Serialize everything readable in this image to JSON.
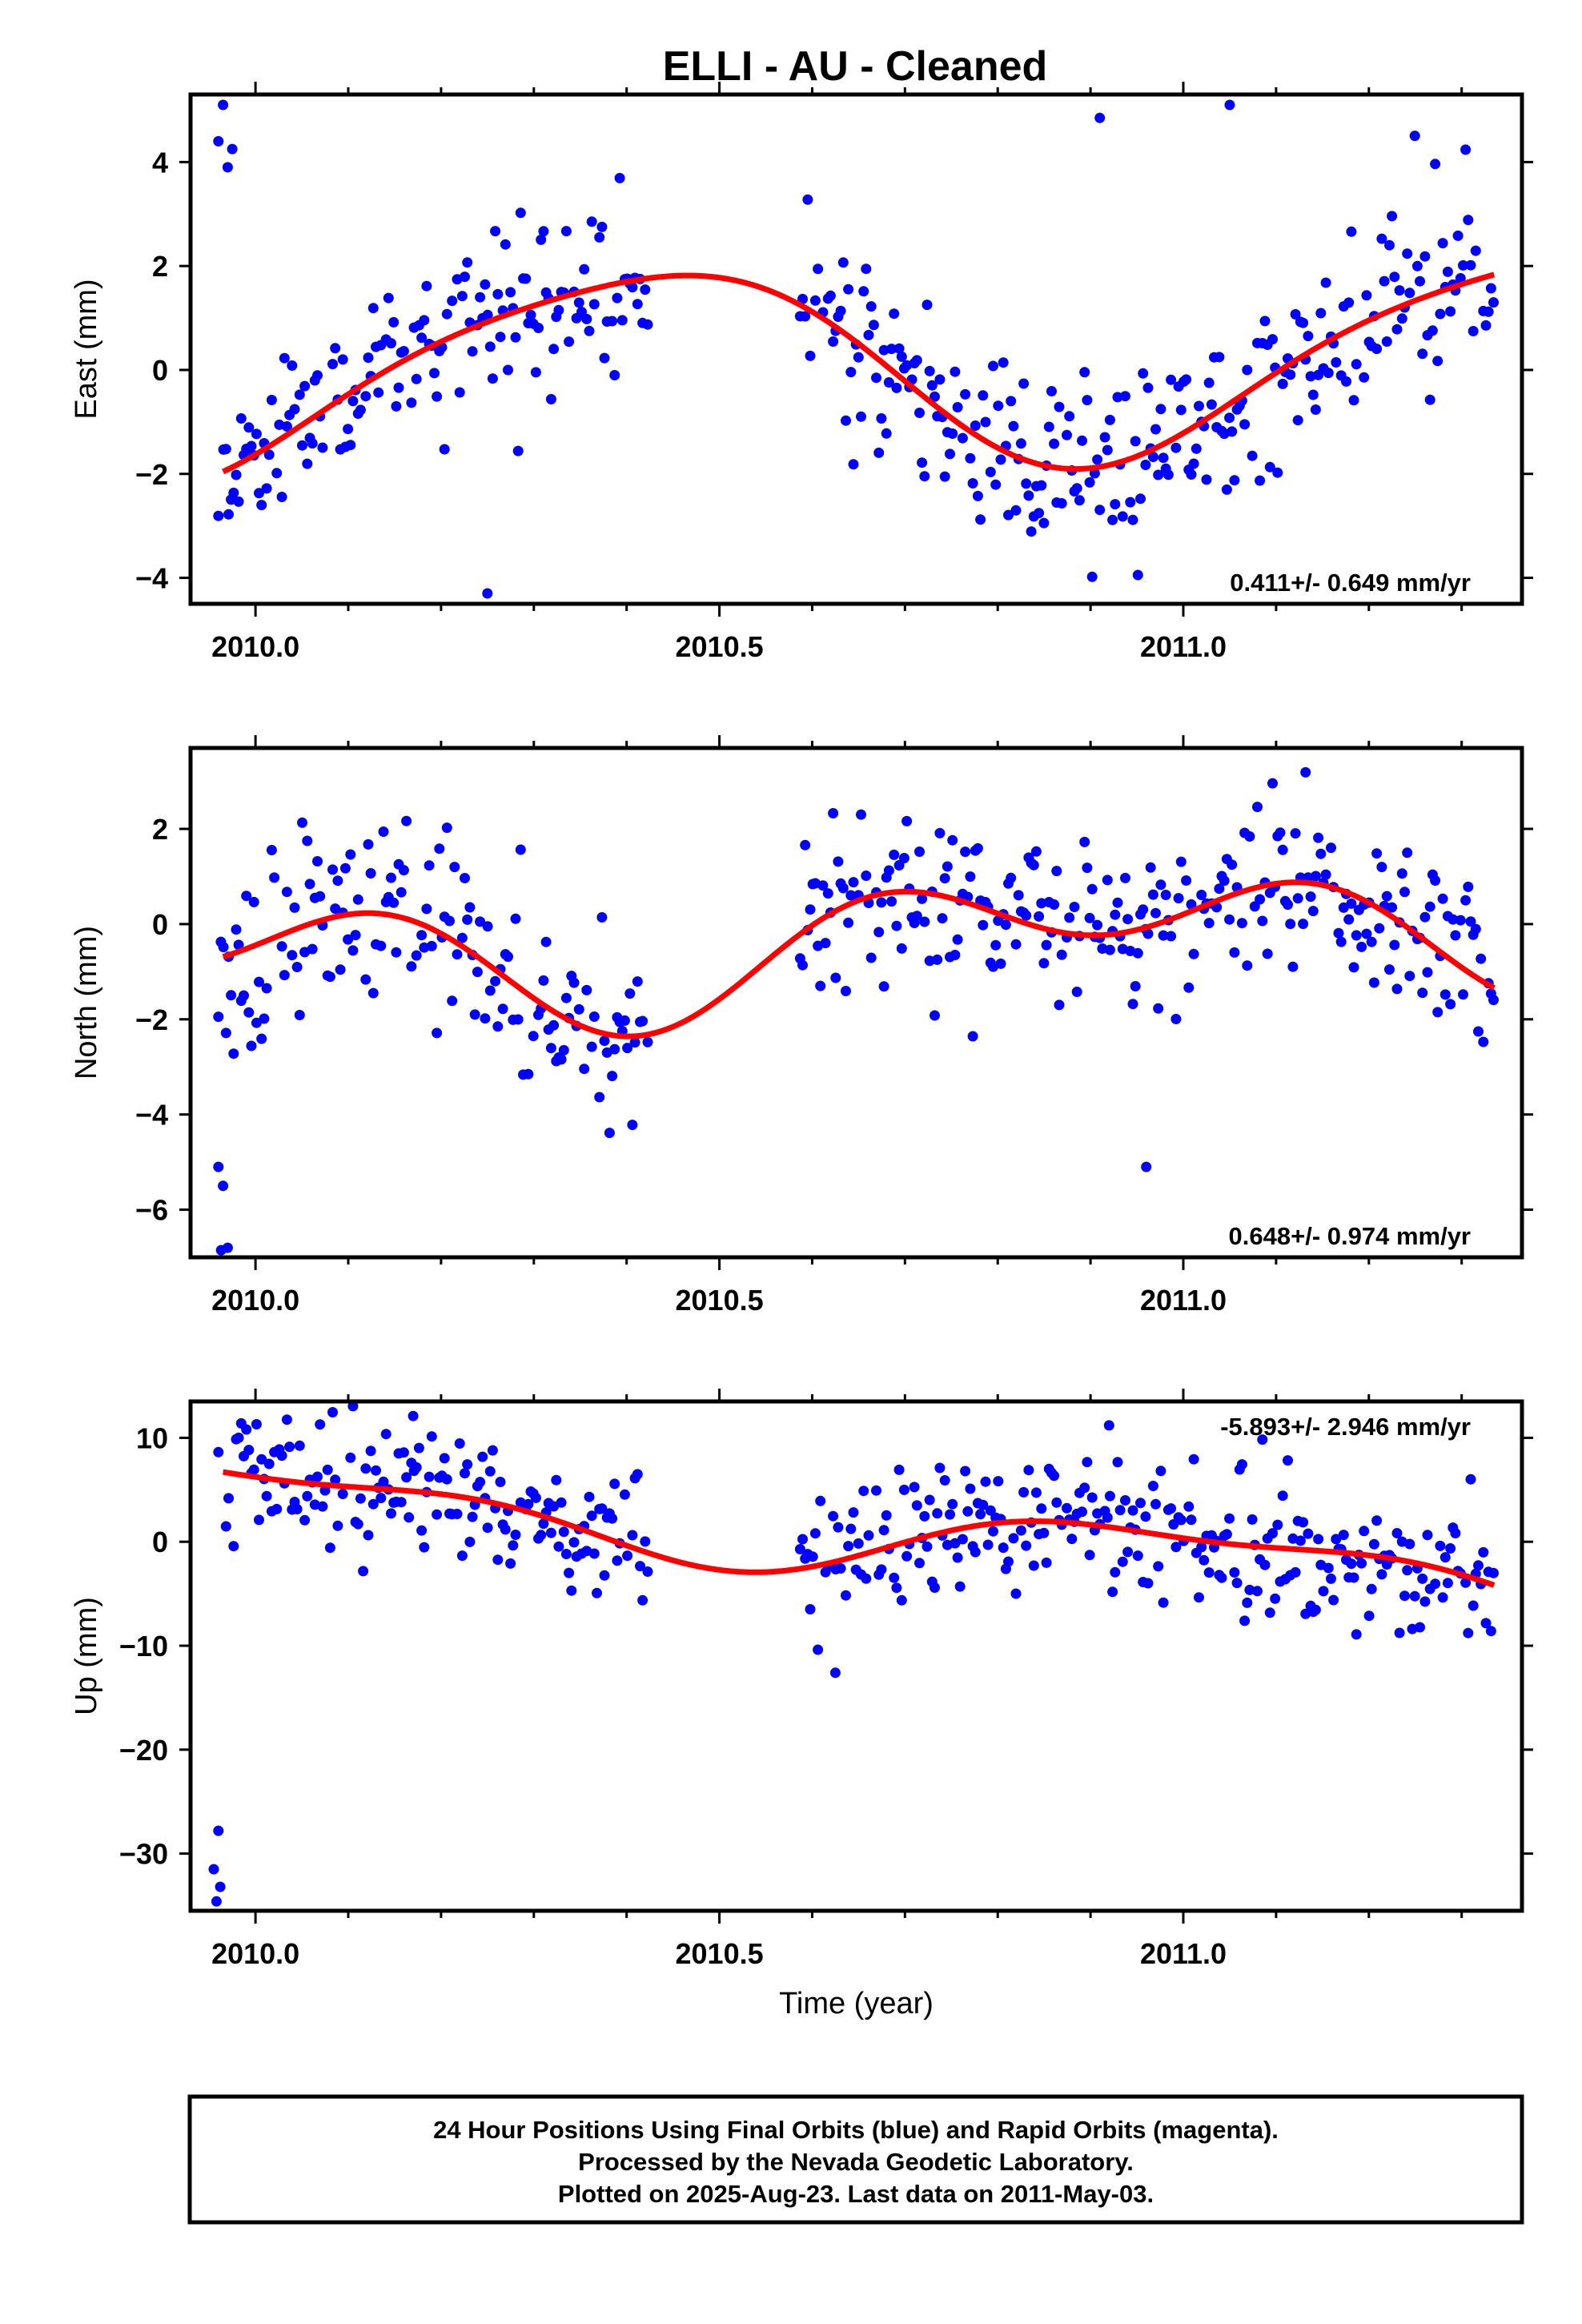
{
  "title": "ELLI  - AU - Cleaned",
  "colors": {
    "final_orbits": "#0000ff",
    "rapid_orbits": "#ff00ff",
    "model": "#ff0000",
    "frame": "#000000"
  },
  "footer": {
    "line1": "24 Hour Positions Using Final Orbits (blue) and Rapid Orbits (magenta).",
    "line2": "Processed by the Nevada Geodetic Laboratory.",
    "line3": "Plotted on 2025-Aug-23. Last data on 2011-May-03."
  },
  "chart_data": [
    {
      "type": "scatter",
      "name": "east",
      "ylabel": "East (mm)",
      "xlabel": "",
      "xlim": [
        2009.93,
        2011.365
      ],
      "ylim": [
        -4.5,
        5.3
      ],
      "xticks": [
        2010.0,
        2010.5,
        2011.0
      ],
      "xtick_labels": [
        "2010.0",
        "2010.5",
        "2011.0"
      ],
      "xminor": [
        2010.1,
        2010.2,
        2010.3,
        2010.4,
        2010.6,
        2010.7,
        2010.8,
        2010.9,
        2011.1,
        2011.2,
        2011.3
      ],
      "yticks": [
        -4,
        -2,
        0,
        2,
        4
      ],
      "ytick_labels": [
        "−4",
        "−2",
        "0",
        "2",
        "4"
      ],
      "rate_label": "0.411+/- 0.649 mm/yr",
      "rate_position": "bottom-right",
      "model": {
        "offset": 0.15,
        "trend": 0.411,
        "amp1": 1.9,
        "phase1": -1.0,
        "amp2": 0.3,
        "phase2": 0.3,
        "t0": 2010.65
      },
      "scatter_sd": 0.85,
      "outliers": [
        [
          2009.96,
          4.4
        ],
        [
          2009.965,
          5.1
        ],
        [
          2009.975,
          4.25
        ],
        [
          2009.97,
          3.9
        ],
        [
          2010.25,
          -4.3
        ],
        [
          2011.05,
          5.1
        ],
        [
          2010.91,
          4.85
        ]
      ],
      "seed": 11
    },
    {
      "type": "scatter",
      "name": "north",
      "ylabel": "North (mm)",
      "xlabel": "",
      "xlim": [
        2009.93,
        2011.365
      ],
      "ylim": [
        -7.0,
        3.7
      ],
      "xticks": [
        2010.0,
        2010.5,
        2011.0
      ],
      "xtick_labels": [
        "2010.0",
        "2010.5",
        "2011.0"
      ],
      "xminor": [
        2010.1,
        2010.2,
        2010.3,
        2010.4,
        2010.6,
        2010.7,
        2010.8,
        2010.9,
        2011.1,
        2011.2,
        2011.3
      ],
      "yticks": [
        -6,
        -4,
        -2,
        0,
        2
      ],
      "ytick_labels": [
        "−6",
        "−4",
        "−2",
        "0",
        "2"
      ],
      "rate_label": "0.648+/- 0.974 mm/yr",
      "rate_position": "bottom-right",
      "model": {
        "offset": -0.4,
        "trend": 0.648,
        "amp1": 0.9,
        "phase1": 2.2,
        "amp2": 0.9,
        "phase2": -0.4,
        "t0": 2010.65
      },
      "scatter_sd": 0.95,
      "outliers": [
        [
          2009.96,
          -5.1
        ],
        [
          2009.965,
          -5.5
        ],
        [
          2009.97,
          -6.8
        ],
        [
          2009.963,
          -6.85
        ],
        [
          2010.96,
          -5.1
        ]
      ],
      "seed": 23
    },
    {
      "type": "scatter",
      "name": "up",
      "ylabel": "Up (mm)",
      "xlabel": "Time (year)",
      "xlim": [
        2009.93,
        2011.365
      ],
      "ylim": [
        -35.5,
        13.5
      ],
      "xticks": [
        2010.0,
        2010.5,
        2011.0
      ],
      "xtick_labels": [
        "2010.0",
        "2010.5",
        "2011.0"
      ],
      "xminor": [
        2010.1,
        2010.2,
        2010.3,
        2010.4,
        2010.6,
        2010.7,
        2010.8,
        2010.9,
        2011.1,
        2011.2,
        2011.3
      ],
      "yticks": [
        -30,
        -20,
        -10,
        0,
        10
      ],
      "ytick_labels": [
        "−30",
        "−20",
        "−10",
        "0",
        "10"
      ],
      "rate_label": "-5.893+/- 2.946 mm/yr",
      "rate_position": "top-right",
      "model": {
        "offset": 0.5,
        "trend": -5.893,
        "amp1": 3.0,
        "phase1": 1.6,
        "amp2": 1.2,
        "phase2": -2.0,
        "t0": 2010.65
      },
      "scatter_sd": 3.4,
      "outliers": [
        [
          2009.96,
          -27.8
        ],
        [
          2009.955,
          -31.5
        ],
        [
          2009.962,
          -33.2
        ],
        [
          2009.958,
          -34.6
        ],
        [
          2010.625,
          -12.6
        ],
        [
          2010.17,
          12.1
        ],
        [
          2010.92,
          11.2
        ]
      ],
      "seed": 37
    }
  ]
}
